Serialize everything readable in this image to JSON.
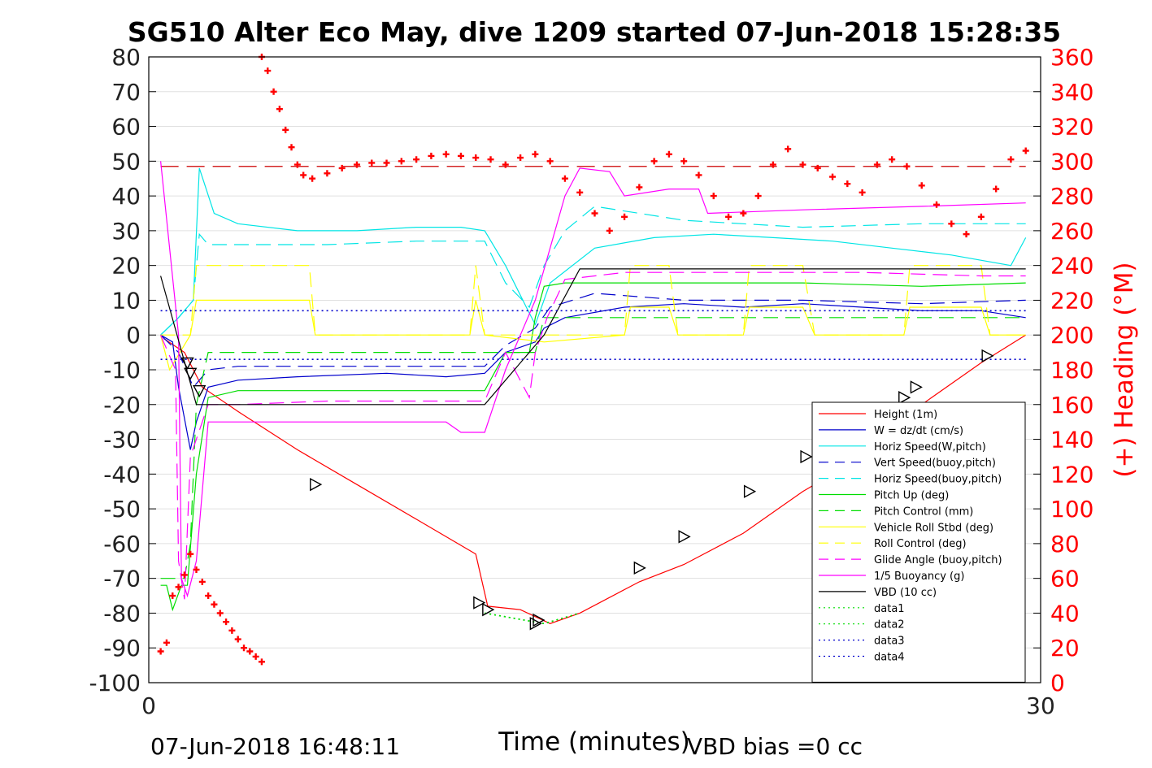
{
  "chart_data": {
    "type": "line",
    "title": "SG510 Alter Eco May, dive 1209 started 07-Jun-2018 15:28:35",
    "xlabel": "Time (minutes)",
    "ylabel_right": "(+) Heading (°M)",
    "xlim": [
      0,
      30
    ],
    "ylim_left": [
      -100,
      80
    ],
    "ylim_right": [
      0,
      360
    ],
    "x_ticks": [
      "0",
      "30"
    ],
    "y_ticks_left": [
      "80",
      "70",
      "60",
      "50",
      "40",
      "30",
      "20",
      "10",
      "0",
      "-10",
      "-20",
      "-30",
      "-40",
      "-50",
      "-60",
      "-70",
      "-80",
      "-90",
      "-100"
    ],
    "y_ticks_right": [
      "360",
      "340",
      "320",
      "300",
      "280",
      "260",
      "240",
      "220",
      "200",
      "180",
      "160",
      "140",
      "120",
      "100",
      "80",
      "60",
      "40",
      "20",
      "0"
    ],
    "footer_left": "07-Jun-2018 16:48:11",
    "footer_right": "VBD bias =0 cc",
    "grid": true,
    "legend_position": "bottom-right",
    "series": [
      {
        "name": "Height (1m)",
        "color": "#ff0000",
        "style": "solid",
        "x": [
          0.5,
          1.2,
          1.8,
          3,
          5,
          7,
          9,
          11,
          11.4,
          12.5,
          13.5,
          14.5,
          16.5,
          18,
          20,
          22,
          24,
          26,
          28,
          29.5
        ],
        "y": [
          -1,
          -5,
          -15,
          -22,
          -33,
          -43,
          -53,
          -63,
          -78,
          -79,
          -83,
          -80,
          -71,
          -66,
          -57,
          -45,
          -35,
          -20,
          -8,
          0
        ]
      },
      {
        "name": "W = dz/dt (cm/s)",
        "color": "#0000cc",
        "style": "solid",
        "x": [
          0.4,
          0.8,
          1.0,
          1.4,
          1.6,
          2,
          3,
          5,
          8,
          10,
          11.3,
          12,
          13,
          13.3,
          14,
          16,
          18,
          20,
          22,
          24,
          26,
          28,
          29.5
        ],
        "y": [
          0,
          -2,
          -15,
          -33,
          -25,
          -15,
          -13,
          -12,
          -11,
          -12,
          -11,
          -5,
          -2,
          2,
          5,
          8,
          9,
          8,
          9,
          8,
          7,
          7,
          5
        ]
      },
      {
        "name": "Horiz Speed(W,pitch)",
        "color": "#00e5e5",
        "style": "solid",
        "x": [
          0.4,
          1.0,
          1.5,
          1.7,
          2.2,
          3,
          5,
          7,
          9,
          10.5,
          11.3,
          12,
          12.7,
          13,
          13.5,
          15,
          17,
          19,
          21,
          23,
          25,
          27,
          29,
          29.5
        ],
        "y": [
          0,
          5,
          10,
          48,
          35,
          32,
          30,
          30,
          31,
          31,
          30,
          20,
          8,
          3,
          15,
          25,
          28,
          29,
          28,
          27,
          25,
          23,
          20,
          28
        ]
      },
      {
        "name": "Vert Speed(buoy,pitch)",
        "color": "#0000cc",
        "style": "dashed",
        "x": [
          0.4,
          1,
          1.5,
          2,
          3,
          6,
          9,
          11.3,
          12,
          13,
          13.5,
          15,
          18,
          22,
          26,
          29.5
        ],
        "y": [
          0,
          -5,
          -15,
          -10,
          -9,
          -9,
          -9,
          -9,
          -3,
          2,
          8,
          12,
          10,
          10,
          9,
          10
        ]
      },
      {
        "name": "Horiz Speed(buoy,pitch)",
        "color": "#00e5e5",
        "style": "dashed",
        "x": [
          0.4,
          1,
          1.5,
          1.7,
          2,
          3,
          6,
          9,
          11.3,
          12,
          12.8,
          13.3,
          14,
          15,
          18,
          22,
          26,
          29.5
        ],
        "y": [
          0,
          5,
          10,
          29,
          26,
          26,
          26,
          27,
          27,
          15,
          8,
          20,
          30,
          37,
          33,
          31,
          32,
          32
        ]
      },
      {
        "name": "Pitch Up (deg)",
        "color": "#00dd00",
        "style": "solid",
        "x": [
          0.4,
          0.6,
          0.8,
          1.1,
          1.3,
          1.6,
          2,
          3,
          6,
          9,
          11.3,
          12,
          12.8,
          13,
          13.3,
          14,
          18,
          22,
          26,
          29.5
        ],
        "y": [
          -72,
          -72,
          -79,
          -72,
          -72,
          -40,
          -18,
          -16,
          -16,
          -16,
          -16,
          -5,
          -5,
          5,
          14,
          15,
          15,
          15,
          14,
          15
        ]
      },
      {
        "name": "Pitch Control (mm)",
        "color": "#00dd00",
        "style": "dashed",
        "x": [
          0.4,
          1.0,
          1.2,
          1.4,
          1.6,
          2,
          5,
          10,
          11.3,
          12,
          13,
          13.3,
          15,
          20,
          25,
          29.5
        ],
        "y": [
          -70,
          -70,
          -70,
          -60,
          -20,
          -5,
          -5,
          -5,
          -5,
          -5,
          -5,
          5,
          5,
          5,
          5,
          5
        ]
      },
      {
        "name": "Vehicle Roll Stbd (deg)",
        "color": "#ffff00",
        "style": "solid",
        "x": [
          0.4,
          0.7,
          1.4,
          1.6,
          2,
          5.4,
          5.6,
          10.8,
          11.0,
          11.3,
          13.3,
          16,
          16.2,
          17.5,
          17.8,
          20,
          20.2,
          22,
          22.4,
          25.4,
          25.6,
          28,
          28.3,
          29.5
        ],
        "y": [
          0,
          -10,
          0,
          10,
          10,
          10,
          0,
          0,
          10,
          0,
          -2,
          0,
          8,
          8,
          0,
          0,
          8,
          8,
          0,
          0,
          8,
          8,
          0,
          0
        ]
      },
      {
        "name": "Roll Control (deg)",
        "color": "#ffff00",
        "style": "dashed",
        "x": [
          0.4,
          1.4,
          1.6,
          5.4,
          5.6,
          10.8,
          11.0,
          11.3,
          13.3,
          16,
          16.2,
          17.5,
          17.8,
          20,
          20.2,
          22,
          22.4,
          25.4,
          25.6,
          28,
          28.3,
          29.5
        ],
        "y": [
          0,
          0,
          20,
          20,
          0,
          0,
          20,
          0,
          0,
          0,
          20,
          20,
          0,
          0,
          20,
          20,
          0,
          0,
          20,
          20,
          0,
          0
        ]
      },
      {
        "name": "Glide Angle (buoy,pitch)",
        "color": "#ff00ff",
        "style": "dashed",
        "x": [
          0.4,
          0.9,
          1.0,
          1.2,
          1.4,
          2,
          3,
          6,
          9,
          11.3,
          12,
          12.8,
          13,
          13.4,
          14,
          16,
          20,
          24,
          28,
          29.5
        ],
        "y": [
          0,
          -10,
          -65,
          -76,
          -35,
          -20,
          -20,
          -19,
          -19,
          -19,
          -5,
          -18,
          -5,
          5,
          16,
          18,
          18,
          18,
          17,
          17
        ]
      },
      {
        "name": "1/5 Buoyancy (g)",
        "color": "#ff00ff",
        "style": "solid",
        "x": [
          0.4,
          1.0,
          1.1,
          1.3,
          1.6,
          2,
          5,
          10,
          10.5,
          11.3,
          12,
          13,
          14,
          14.5,
          15.5,
          16,
          17.5,
          18.5,
          18.8,
          22,
          26,
          29.5
        ],
        "y": [
          50,
          0,
          -70,
          -75,
          -65,
          -25,
          -25,
          -25,
          -28,
          -28,
          -10,
          10,
          40,
          48,
          47,
          40,
          42,
          42,
          35,
          36,
          37,
          38
        ]
      },
      {
        "name": "VBD (10 cc)",
        "color": "#000000",
        "style": "solid",
        "x": [
          0.4,
          1.6,
          11.3,
          13.3,
          14.5,
          29.5
        ],
        "y": [
          17,
          -20,
          -20,
          0,
          19,
          19
        ]
      },
      {
        "name": "data1",
        "color": "#00dd00",
        "style": "dotted",
        "x": [
          11.3,
          13.3,
          14.5
        ],
        "y": [
          -80,
          -83,
          -80
        ]
      },
      {
        "name": "data2",
        "color": "#00dd00",
        "style": "dotted",
        "x": [
          11.3,
          13.3,
          14.5
        ],
        "y": [
          -80,
          -83,
          -80
        ]
      },
      {
        "name": "data3",
        "color": "#0000cc",
        "style": "dotted",
        "x": [
          0.4,
          29.5
        ],
        "y": [
          7,
          7
        ]
      },
      {
        "name": "data4",
        "color": "#0000cc",
        "style": "dotted",
        "x": [
          0.4,
          29.5
        ],
        "y": [
          -7,
          -7
        ]
      }
    ],
    "heading_target": 297,
    "heading": {
      "color": "#ff0000",
      "x": [
        0.4,
        0.6,
        0.8,
        1.0,
        1.2,
        1.4,
        1.6,
        1.8,
        2.0,
        2.2,
        2.4,
        2.6,
        2.8,
        3.0,
        3.2,
        3.4,
        3.6,
        3.8,
        3.8,
        4.0,
        4.2,
        4.4,
        4.6,
        4.8,
        5.0,
        5.2,
        5.5,
        6,
        6.5,
        7,
        7.5,
        8,
        8.5,
        9,
        9.5,
        10,
        10.5,
        11,
        11.5,
        12,
        12.5,
        13,
        13.5,
        14,
        14.5,
        15,
        15.5,
        16,
        16.5,
        17,
        17.5,
        18,
        18.5,
        19,
        19.5,
        20,
        20.5,
        21,
        21.5,
        22,
        22.5,
        23,
        23.5,
        24,
        24.5,
        25,
        25.5,
        26,
        26.5,
        27,
        27.5,
        28,
        28.5,
        29,
        29.5
      ],
      "y": [
        18,
        23,
        50,
        55,
        62,
        74,
        65,
        58,
        50,
        45,
        40,
        35,
        30,
        25,
        20,
        18,
        15,
        12,
        360,
        352,
        340,
        330,
        318,
        308,
        298,
        292,
        290,
        293,
        296,
        298,
        299,
        299,
        300,
        301,
        303,
        304,
        303,
        302,
        301,
        298,
        302,
        304,
        300,
        290,
        282,
        270,
        260,
        268,
        285,
        300,
        304,
        300,
        292,
        280,
        268,
        270,
        280,
        298,
        307,
        298,
        296,
        291,
        287,
        282,
        298,
        301,
        297,
        286,
        275,
        264,
        258,
        268,
        284,
        301,
        306
      ]
    },
    "markers": {
      "color": "#000000",
      "down": {
        "x": [
          1.3,
          1.4,
          1.7
        ],
        "y": [
          -8,
          -11,
          -16
        ]
      },
      "right": {
        "x": [
          5.6,
          11.1,
          11.4,
          13.0,
          13.1,
          16.5,
          18.0,
          20.2,
          22.1,
          25.4,
          25.8,
          28.2
        ],
        "y": [
          -43,
          -77,
          -79,
          -83,
          -82,
          -67,
          -58,
          -45,
          -35,
          -18,
          -15,
          -6
        ]
      }
    }
  }
}
